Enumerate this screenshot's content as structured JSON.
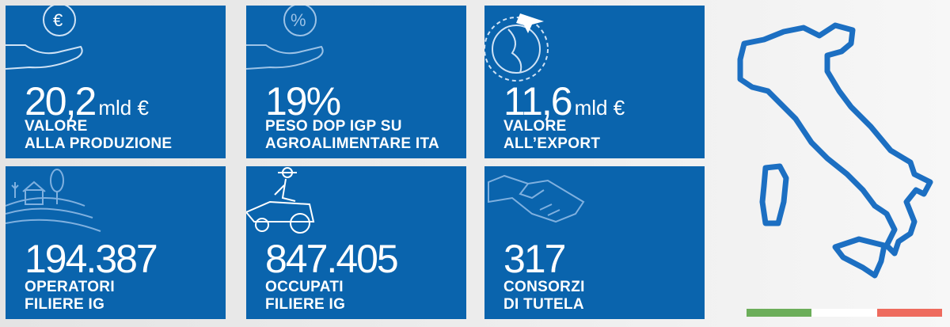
{
  "tiles": [
    {
      "value": "20,2",
      "unit": "mld €",
      "label": [
        "VALORE",
        "ALLA PRODUZIONE"
      ]
    },
    {
      "value": "19%",
      "label": [
        "PESO DOP IGP SU",
        "AGROALIMENTARE ITA"
      ]
    },
    {
      "value": "11,6",
      "unit": "mld €",
      "label": [
        "VALORE",
        "ALL’EXPORT"
      ]
    },
    {
      "value": "194.387",
      "label": [
        "OPERATORI",
        "FILIERE IG"
      ]
    },
    {
      "value": "847.405",
      "label": [
        "OCCUPATI",
        "FILIERE IG"
      ]
    },
    {
      "value": "317",
      "label": [
        "CONSORZI",
        "DI TUTELA"
      ]
    }
  ]
}
